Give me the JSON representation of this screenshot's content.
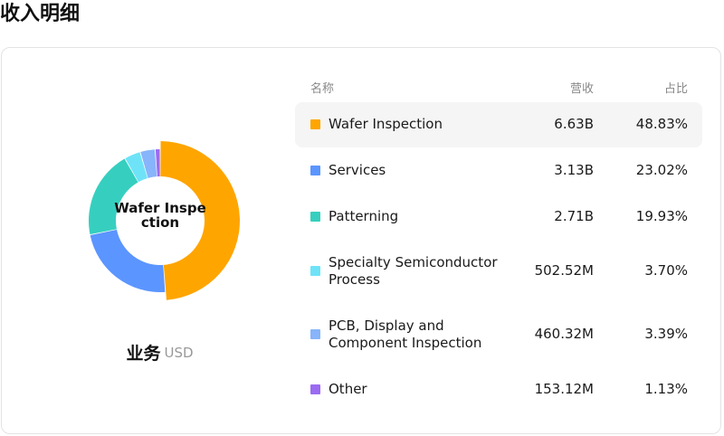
{
  "page": {
    "title": "收入明细"
  },
  "donut": {
    "center_label": "Wafer Inspection"
  },
  "legend": {
    "title": "业务",
    "unit": "USD"
  },
  "table": {
    "headers": {
      "name": "名称",
      "revenue": "营收",
      "share": "占比"
    },
    "rows": [
      {
        "name": "Wafer Inspection",
        "revenue": "6.63B",
        "share": "48.83%",
        "color": "#FFA500",
        "highlighted": true
      },
      {
        "name": "Services",
        "revenue": "3.13B",
        "share": "23.02%",
        "color": "#5B95FF",
        "highlighted": false
      },
      {
        "name": "Patterning",
        "revenue": "2.71B",
        "share": "19.93%",
        "color": "#36CFBF",
        "highlighted": false
      },
      {
        "name": "Specialty Semiconductor Process",
        "revenue": "502.52M",
        "share": "3.70%",
        "color": "#6EE3F7",
        "highlighted": false
      },
      {
        "name": "PCB, Display and Component Inspection",
        "revenue": "460.32M",
        "share": "3.39%",
        "color": "#87B4FA",
        "highlighted": false
      },
      {
        "name": "Other",
        "revenue": "153.12M",
        "share": "1.13%",
        "color": "#9B6BF2",
        "highlighted": false
      }
    ]
  },
  "chart_data": {
    "type": "pie",
    "variant": "donut",
    "categories": [
      "Wafer Inspection",
      "Services",
      "Patterning",
      "Specialty Semiconductor Process",
      "PCB, Display and Component Inspection",
      "Other"
    ],
    "values": [
      48.83,
      23.02,
      19.93,
      3.7,
      3.39,
      1.13
    ],
    "revenue_labels": [
      "6.63B",
      "3.13B",
      "2.71B",
      "502.52M",
      "460.32M",
      "153.12M"
    ],
    "colors": [
      "#FFA500",
      "#5B95FF",
      "#36CFBF",
      "#6EE3F7",
      "#87B4FA",
      "#9B6BF2"
    ],
    "highlighted": "Wafer Inspection",
    "unit": "USD",
    "legend_title": "业务"
  }
}
